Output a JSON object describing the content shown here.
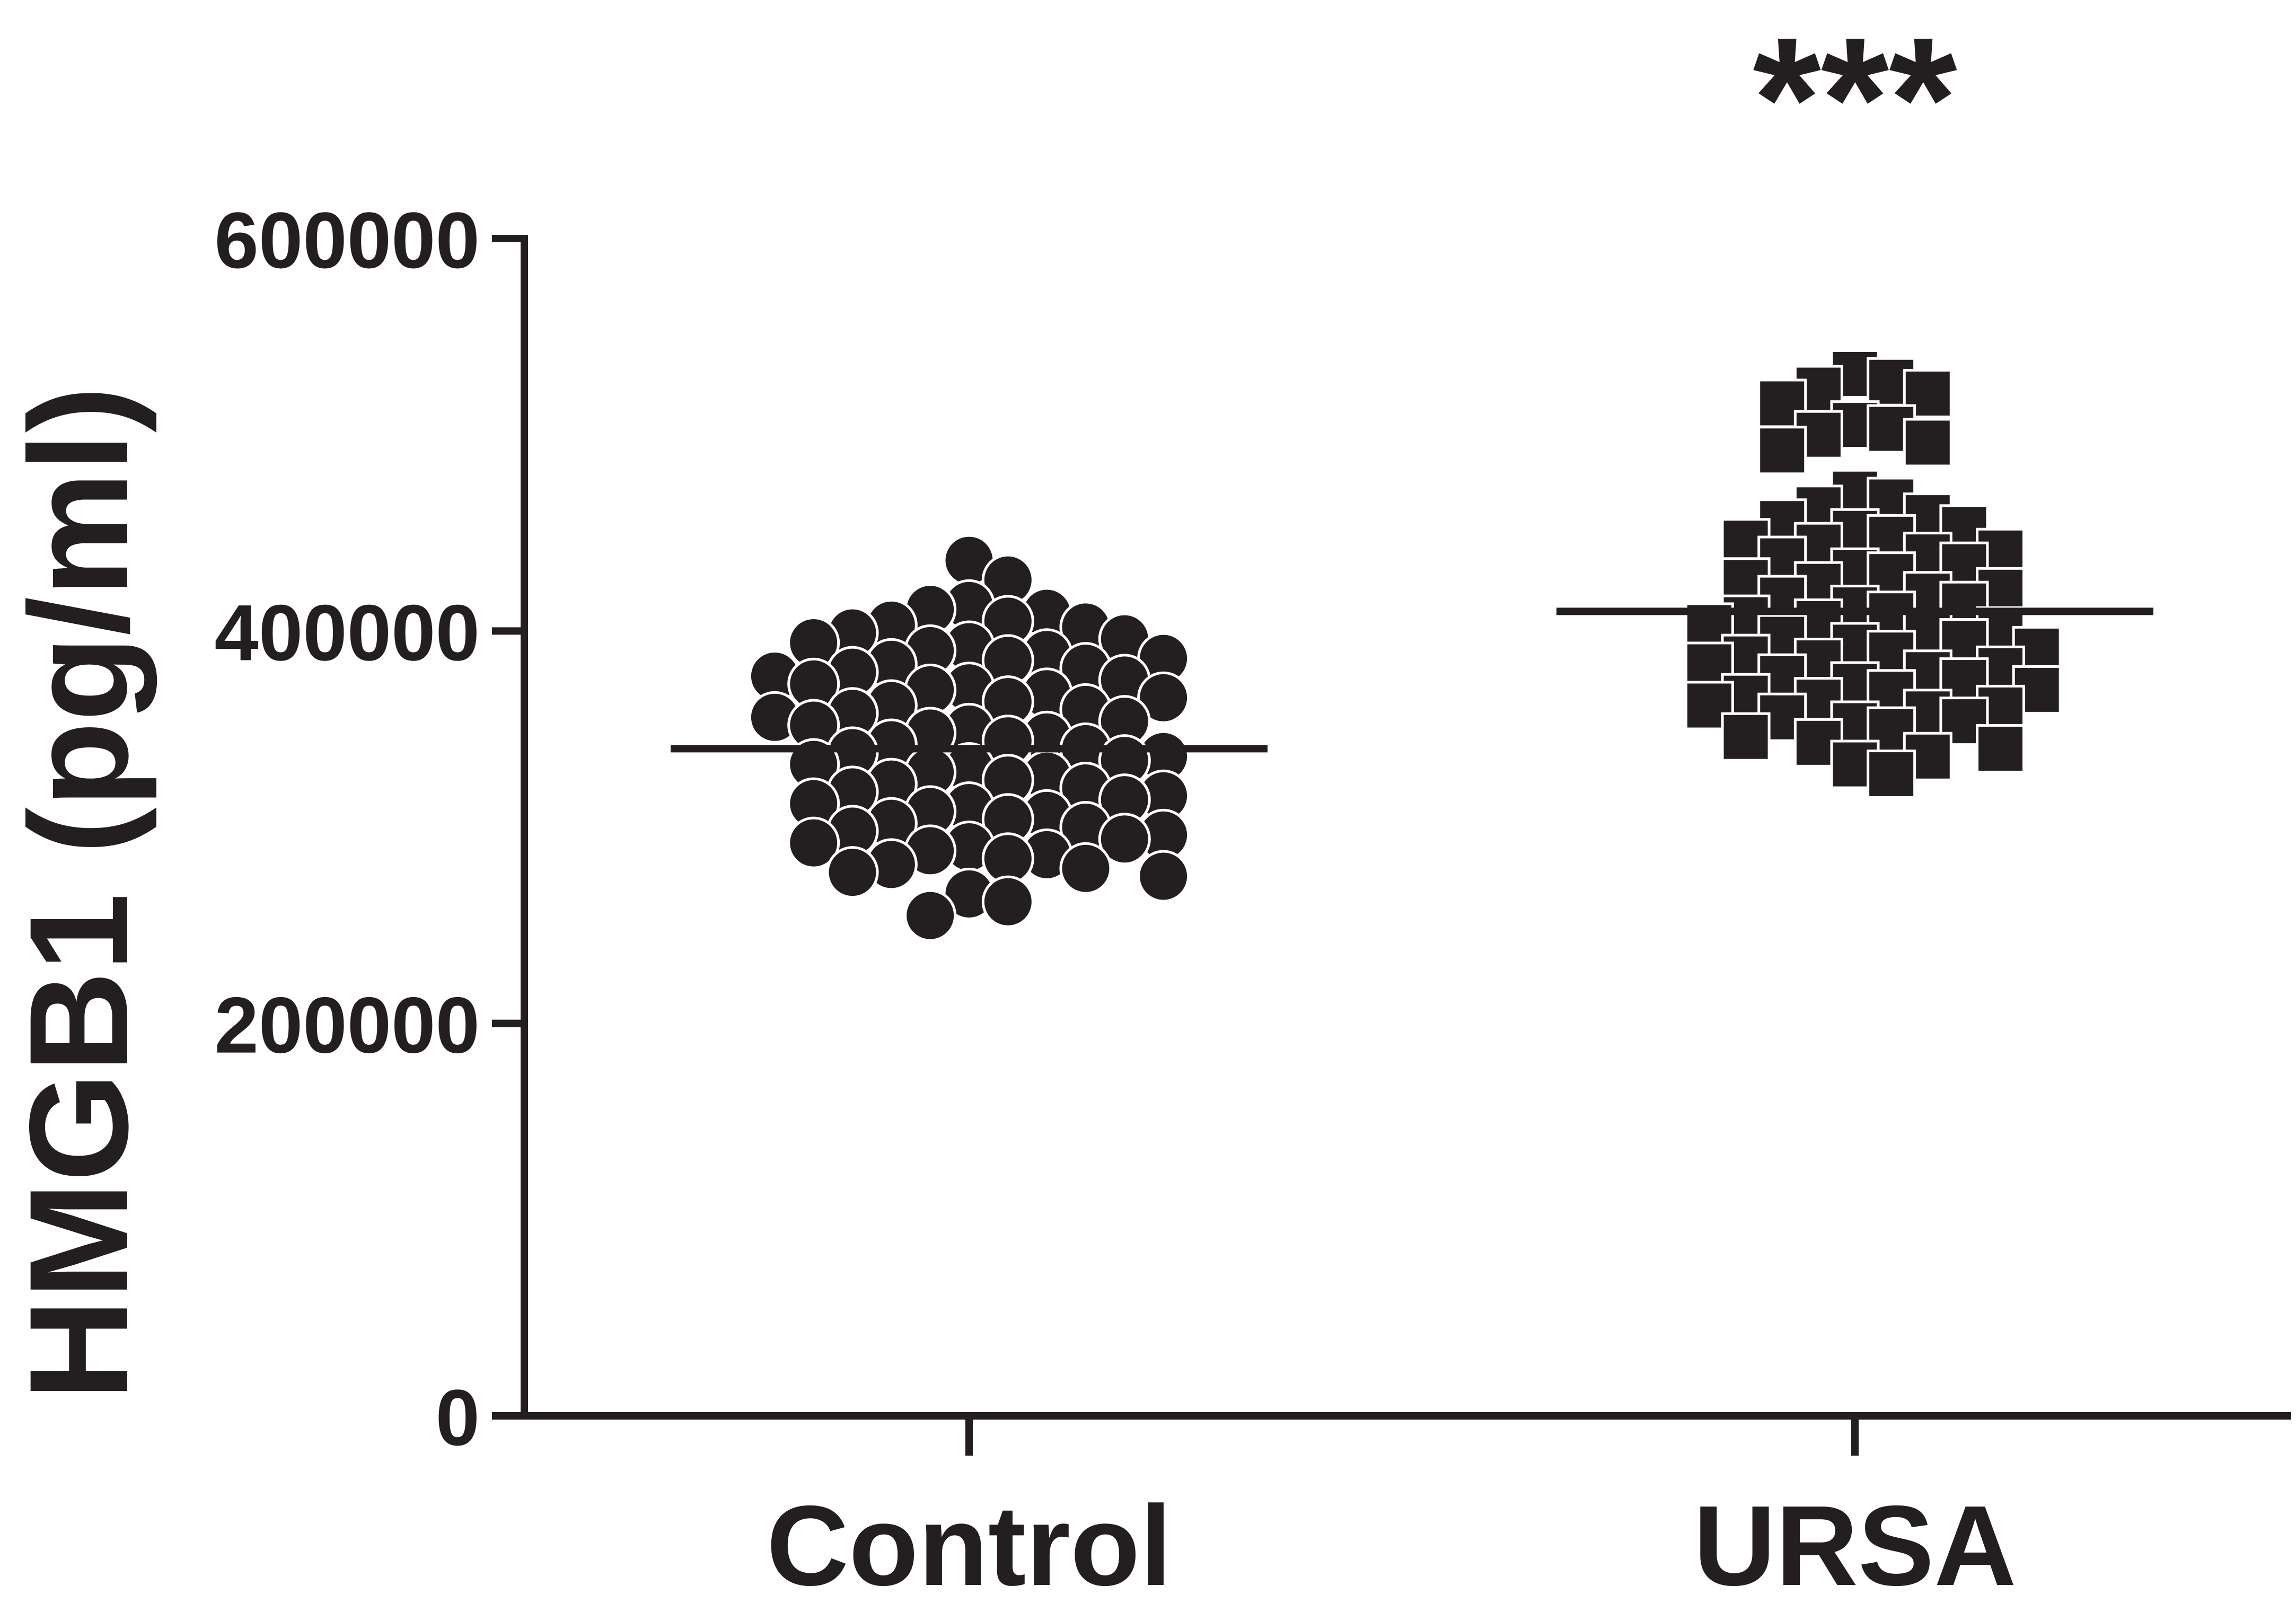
{
  "chart_data": {
    "type": "dot-plot",
    "y_label": "HMGB1 (pg/ml)",
    "categories": [
      "Control",
      "URSA"
    ],
    "groups": [
      {
        "marker": "circle",
        "color": "#231f20",
        "mean": 340000,
        "values": [
          436000,
          426000,
          413000,
          411000,
          409000,
          405000,
          403000,
          402000,
          399000,
          396000,
          394000,
          392000,
          390000,
          388000,
          386000,
          385000,
          383000,
          381000,
          379000,
          377000,
          375000,
          373000,
          371000,
          370000,
          368000,
          366000,
          364000,
          362000,
          360000,
          358000,
          356000,
          354000,
          352000,
          350000,
          348000,
          346000,
          344000,
          342000,
          340000,
          338000,
          336000,
          334000,
          332000,
          330000,
          328000,
          326000,
          324000,
          322000,
          320000,
          318000,
          316000,
          314000,
          312000,
          310000,
          308000,
          306000,
          304000,
          302000,
          300000,
          298000,
          296000,
          294000,
          292000,
          290000,
          288000,
          286000,
          284000,
          281000,
          279000,
          277000,
          275000,
          266000,
          262000,
          255000
        ]
      },
      {
        "marker": "square",
        "color": "#231f20",
        "mean": 410000,
        "values": [
          531000,
          527000,
          523000,
          521000,
          516000,
          505000,
          503000,
          500000,
          496000,
          492000,
          470000,
          466000,
          462000,
          458000,
          455000,
          452000,
          450000,
          447000,
          445000,
          443000,
          440000,
          438000,
          436000,
          433000,
          430000,
          428000,
          425000,
          423000,
          420000,
          418000,
          416000,
          413000,
          411000,
          408000,
          406000,
          404000,
          402000,
          400000,
          398000,
          396000,
          394000,
          392000,
          390000,
          388000,
          386000,
          384000,
          382000,
          380000,
          378000,
          376000,
          374000,
          372000,
          370000,
          368000,
          366000,
          364000,
          362000,
          360000,
          358000,
          356000,
          354000,
          352000,
          349000,
          346000,
          343000,
          340000,
          336000,
          332000,
          327000
        ]
      }
    ],
    "annotations": [
      {
        "text": "***",
        "category": 1
      }
    ],
    "ylim": [
      0,
      600000
    ],
    "yticks": [
      0,
      200000,
      400000,
      600000
    ]
  }
}
